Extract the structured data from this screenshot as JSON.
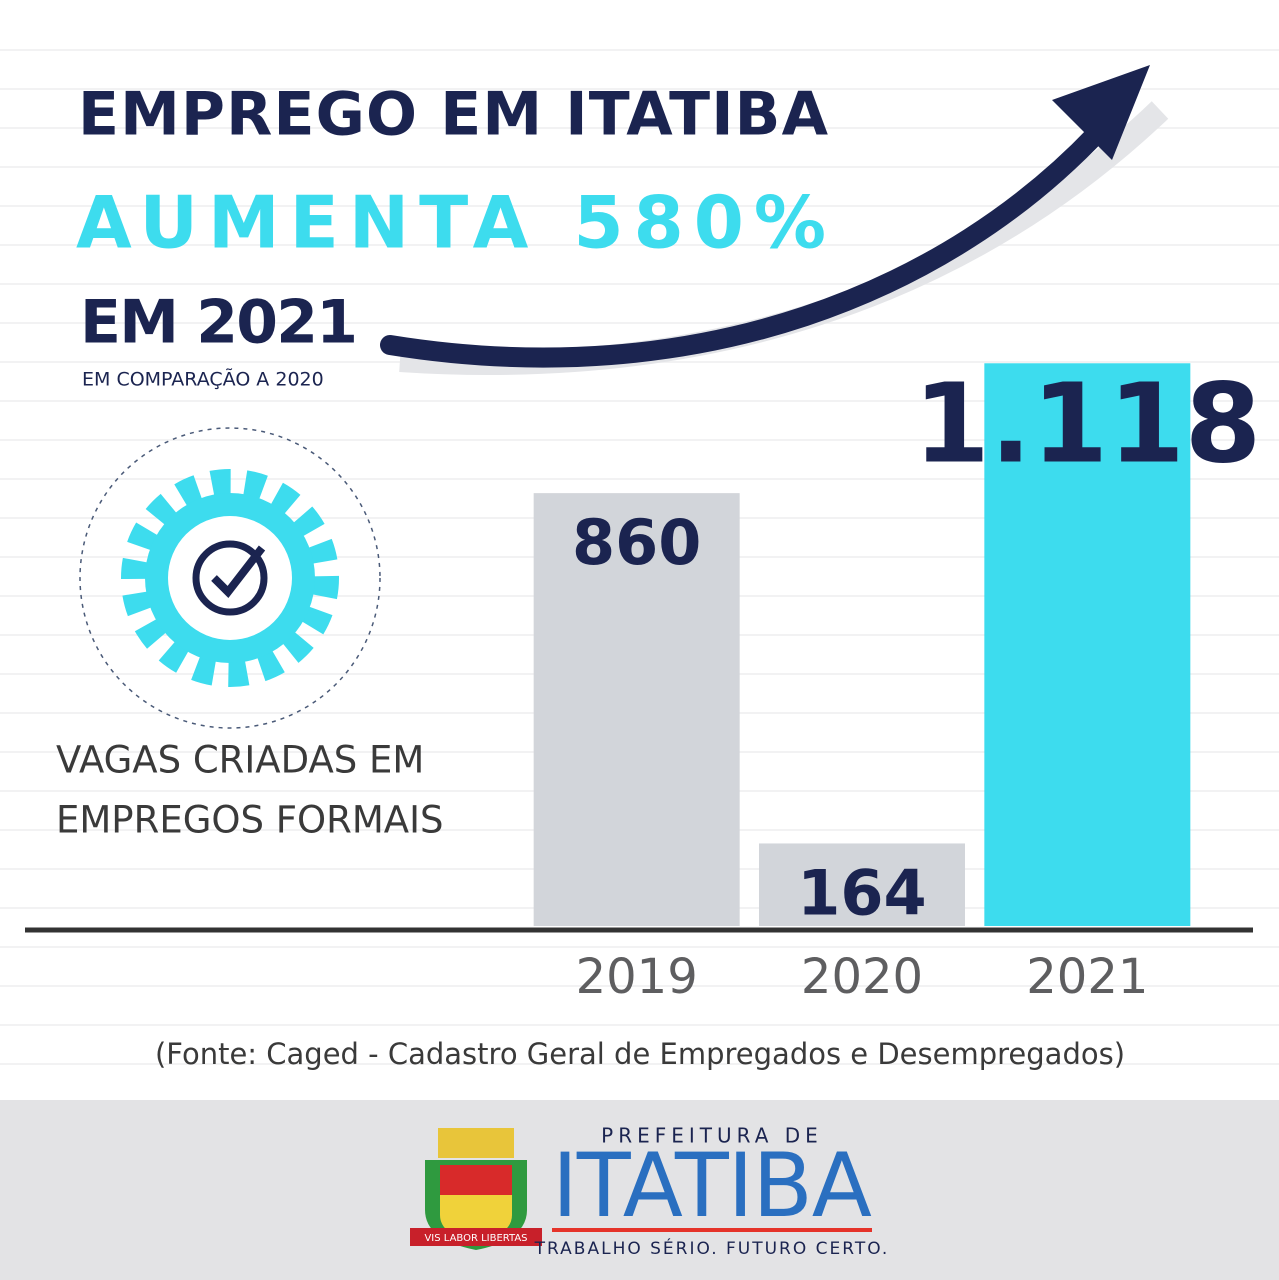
{
  "chart_data": {
    "type": "bar",
    "title": "EMPREGO EM ITATIBA",
    "subtitle": "AUMENTA 580%",
    "annotations": [
      "EM 2021",
      "EM COMPARAÇÃO A 2020",
      "VAGAS CRIADAS EM",
      "EMPREGOS FORMAIS"
    ],
    "categories": [
      "2019",
      "2020",
      "2021"
    ],
    "values": [
      860,
      164,
      1118
    ],
    "value_labels": [
      "860",
      "164",
      "1.118"
    ],
    "colors": [
      "#d2d5da",
      "#d2d5da",
      "#3ddcee"
    ],
    "ylim": [
      0,
      1200
    ],
    "source": "(Fonte: Caged - Cadastro Geral de Empregados e Desempregados)"
  },
  "footer": {
    "crest_motto": "VIS LABOR LIBERTAS",
    "top_line": "PREFEITURA DE",
    "name": "ITATIBA",
    "slogan": "TRABALHO SÉRIO. FUTURO CERTO."
  }
}
